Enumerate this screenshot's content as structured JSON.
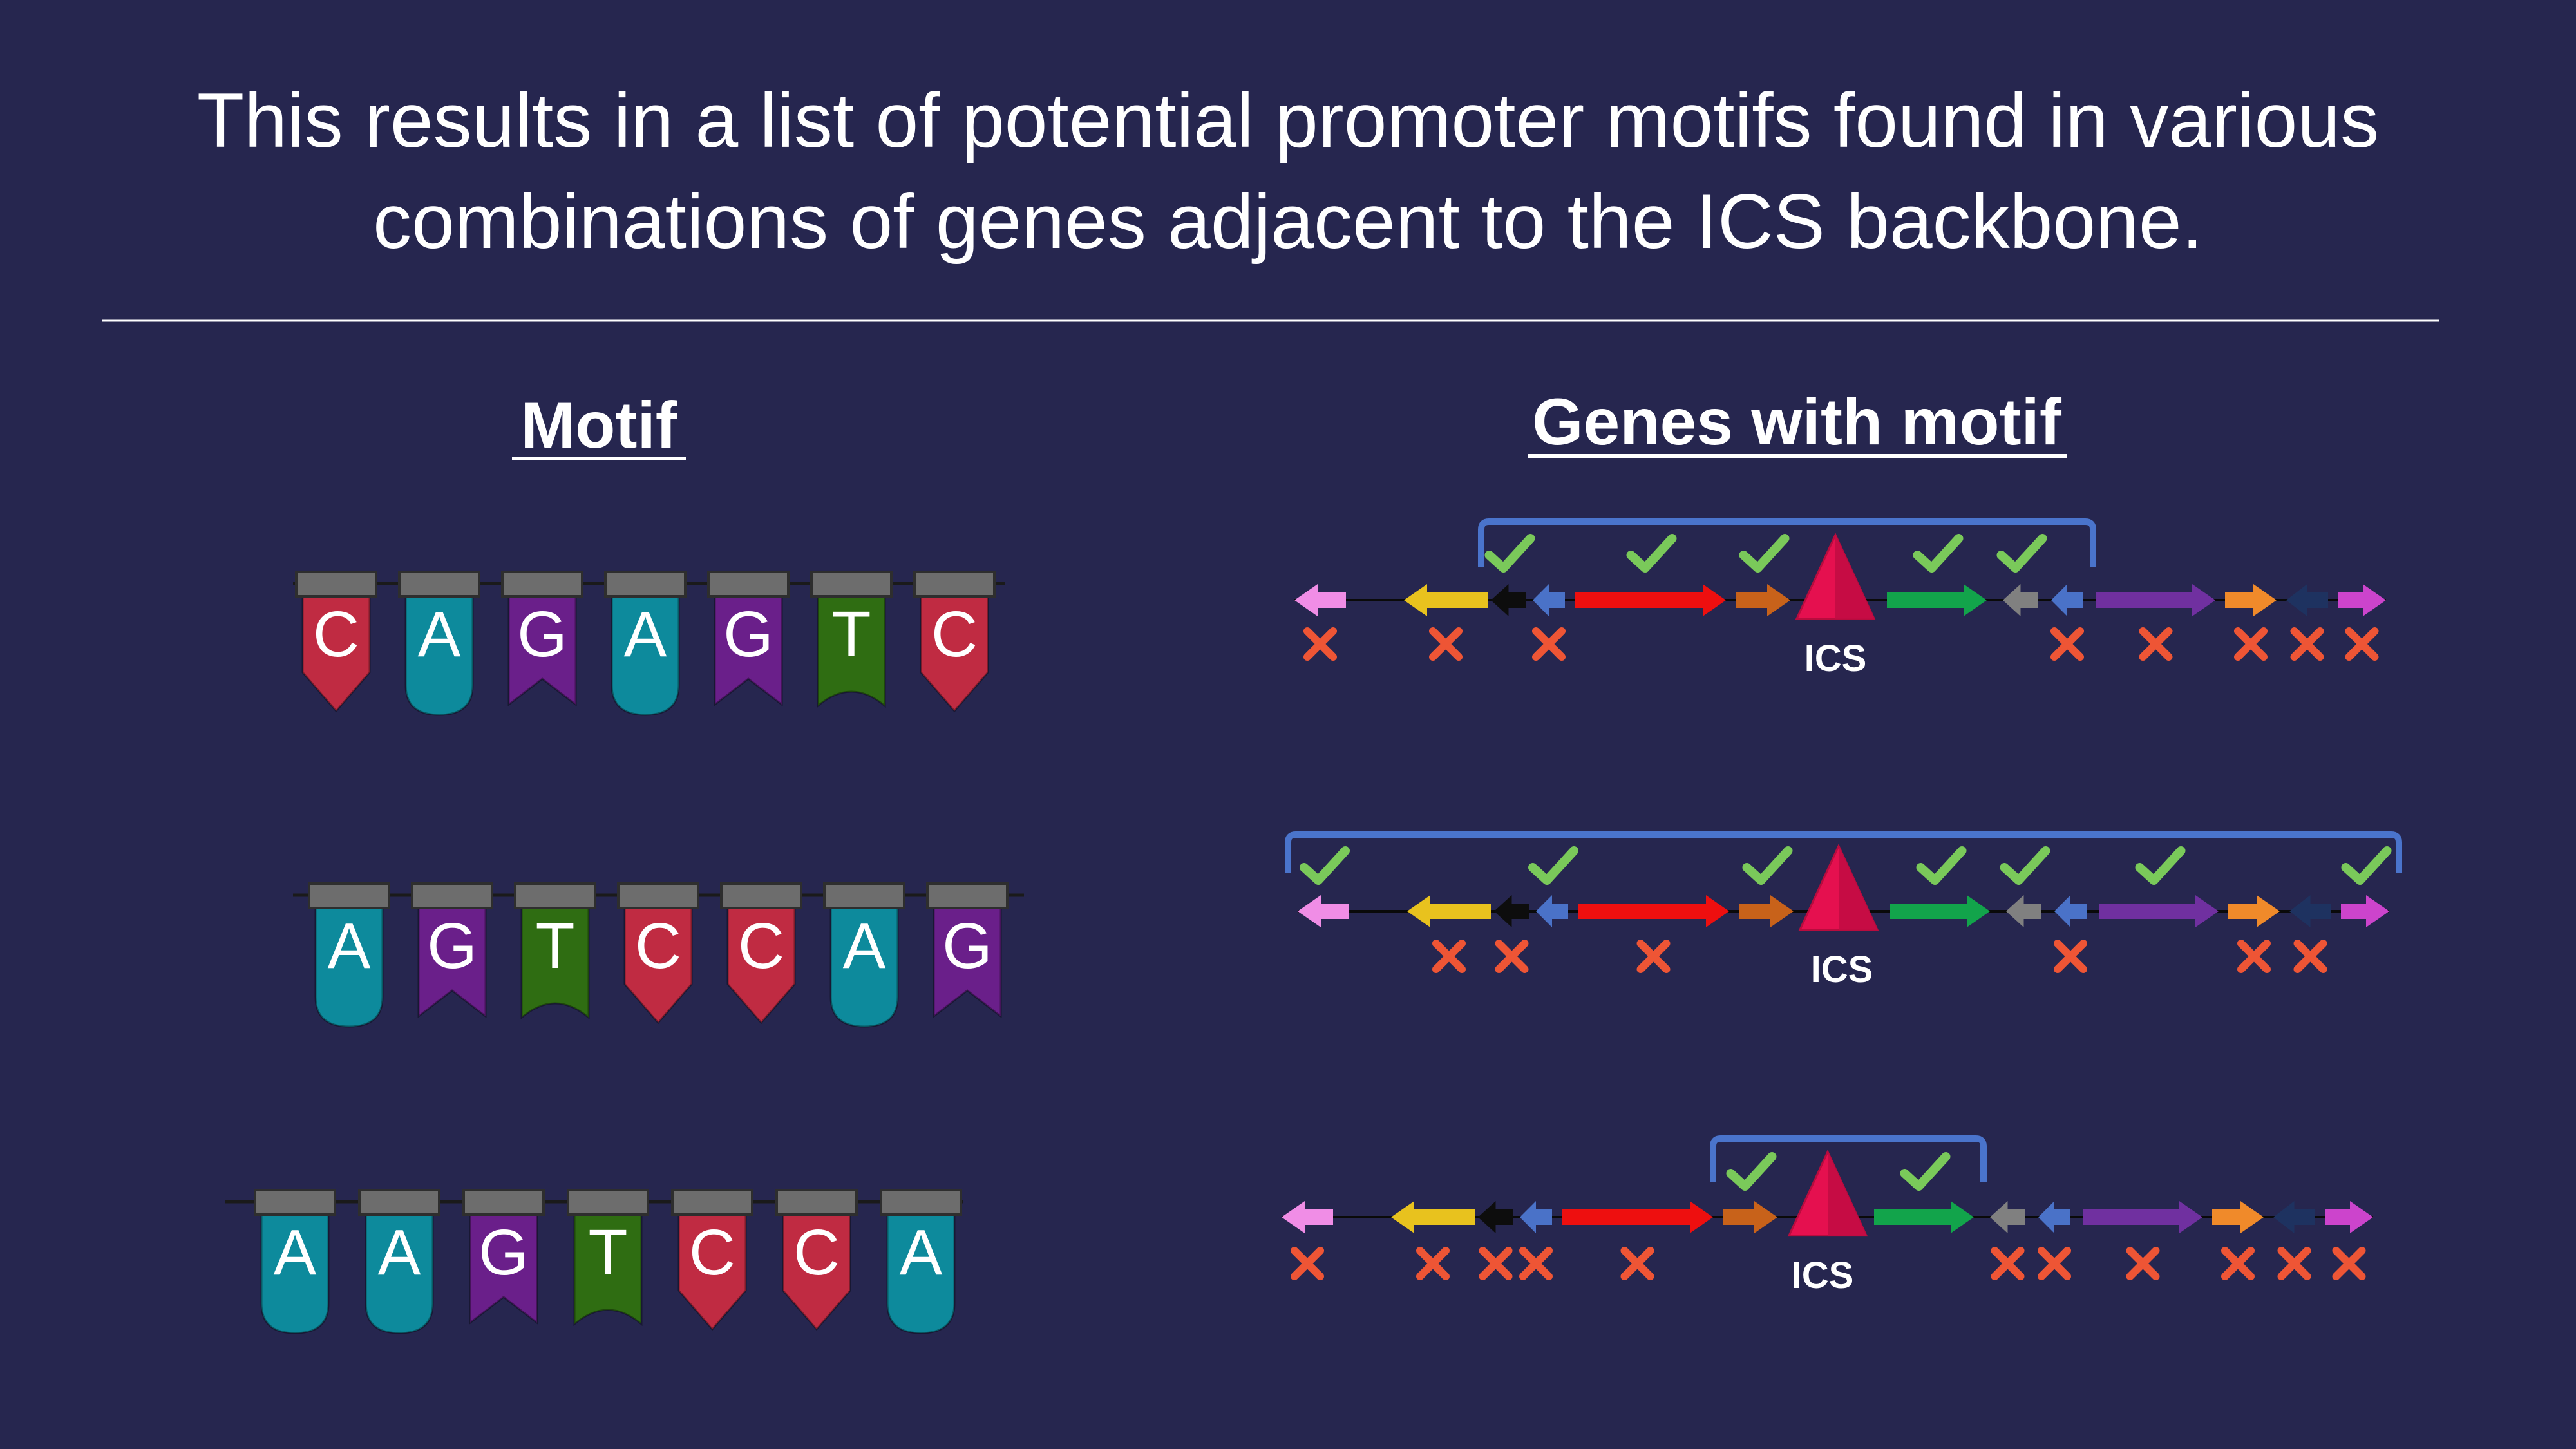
{
  "title": {
    "line1": "This results in a list of potential promoter motifs found in various",
    "line2": "combinations of genes adjacent to the ICS backbone."
  },
  "headings": {
    "motif": "Motif",
    "genes": "Genes with motif"
  },
  "colors": {
    "background": "#26264f",
    "A": "#0d8a9c",
    "C": "#c02b42",
    "G": "#6a1f8a",
    "T": "#2f6d12",
    "flag_cap": "#6d6d6d",
    "bracket": "#4a74cc",
    "check": "#7ac95a",
    "cross": "#ee5535",
    "ics": "#e5104f"
  },
  "motifs": [
    {
      "letters": [
        "C",
        "A",
        "G",
        "A",
        "G",
        "T",
        "C"
      ]
    },
    {
      "letters": [
        "A",
        "G",
        "T",
        "C",
        "C",
        "A",
        "G"
      ]
    },
    {
      "letters": [
        "A",
        "A",
        "G",
        "T",
        "C",
        "C",
        "A"
      ]
    }
  ],
  "ics_label": "ICS",
  "gene_track": {
    "genes": [
      {
        "id": "pink",
        "color": "#f08de6",
        "direction": "left"
      },
      {
        "id": "yellow",
        "color": "#e8c21e",
        "direction": "left"
      },
      {
        "id": "black",
        "color": "#0d0d0d",
        "direction": "left"
      },
      {
        "id": "blue-small",
        "color": "#4a72c8",
        "direction": "left"
      },
      {
        "id": "red",
        "color": "#ee0f0f",
        "direction": "right"
      },
      {
        "id": "orange-1",
        "color": "#c8621a",
        "direction": "right"
      },
      {
        "id": "green",
        "color": "#12a44b",
        "direction": "right"
      },
      {
        "id": "gray",
        "color": "#808080",
        "direction": "left"
      },
      {
        "id": "blue-2",
        "color": "#4a72c8",
        "direction": "left"
      },
      {
        "id": "purple",
        "color": "#7030a0",
        "direction": "right"
      },
      {
        "id": "orange-2",
        "color": "#f08a2a",
        "direction": "right"
      },
      {
        "id": "navy",
        "color": "#1e3260",
        "direction": "left"
      },
      {
        "id": "magenta",
        "color": "#cc44cc",
        "direction": "right"
      }
    ]
  },
  "results": [
    {
      "marks": [
        "cross",
        "cross",
        "check",
        "cross",
        "check",
        "check",
        "check",
        "check",
        "cross",
        "cross",
        "cross",
        "cross",
        "cross"
      ],
      "bracket": {
        "first_gene": 2,
        "last_gene": 8
      }
    },
    {
      "marks": [
        "check",
        "cross",
        "cross",
        "check",
        "cross",
        "check",
        "check",
        "check",
        "cross",
        "check",
        "cross",
        "cross",
        "check"
      ],
      "bracket": {
        "first_gene": 0,
        "last_gene": 12
      }
    },
    {
      "marks": [
        "cross",
        "cross",
        "cross",
        "cross",
        "cross",
        "check",
        "check",
        "cross",
        "cross",
        "cross",
        "cross",
        "cross",
        "cross"
      ],
      "bracket": {
        "first_gene": 5,
        "last_gene": 6
      }
    }
  ]
}
